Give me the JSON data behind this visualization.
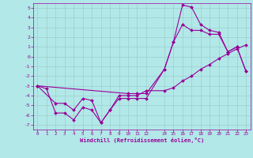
{
  "xlabel": "Windchill (Refroidissement éolien,°C)",
  "background_color": "#b2e8e8",
  "grid_color": "#9dcfcf",
  "line_color": "#990099",
  "xlim": [
    -0.5,
    23.5
  ],
  "ylim": [
    -7.5,
    5.5
  ],
  "xticks": [
    0,
    1,
    2,
    3,
    4,
    5,
    6,
    7,
    8,
    9,
    10,
    11,
    12,
    14,
    15,
    16,
    17,
    18,
    19,
    20,
    21,
    22,
    23
  ],
  "yticks": [
    -7,
    -6,
    -5,
    -4,
    -3,
    -2,
    -1,
    0,
    1,
    2,
    3,
    4,
    5
  ],
  "line1_x": [
    0,
    1,
    2,
    3,
    4,
    5,
    6,
    7,
    8,
    9,
    10,
    11,
    12,
    14,
    15,
    16,
    17,
    18,
    19,
    20,
    21,
    22,
    23
  ],
  "line1_y": [
    -3,
    -3.3,
    -5.8,
    -5.8,
    -6.5,
    -5.2,
    -5.5,
    -6.8,
    -5.5,
    -4.3,
    -4.3,
    -4.3,
    -4.3,
    -1.3,
    1.5,
    5.3,
    5.1,
    3.3,
    2.7,
    2.5,
    0.5,
    1.0,
    -1.5
  ],
  "line2_x": [
    0,
    2,
    3,
    4,
    5,
    6,
    7,
    8,
    9,
    10,
    11,
    12,
    14,
    15,
    16,
    17,
    18,
    19,
    20,
    21,
    22,
    23
  ],
  "line2_y": [
    -3,
    -4.8,
    -4.8,
    -5.5,
    -4.3,
    -4.5,
    -6.8,
    -5.5,
    -4.0,
    -4.0,
    -4.0,
    -3.5,
    -3.5,
    -3.2,
    -2.5,
    -2.0,
    -1.3,
    -0.8,
    -0.2,
    0.3,
    0.8,
    1.2
  ],
  "line3_x": [
    0,
    10,
    11,
    12,
    14,
    15,
    16,
    17,
    18,
    19,
    20,
    21,
    22,
    23
  ],
  "line3_y": [
    -3,
    -3.8,
    -3.8,
    -3.8,
    -1.3,
    1.5,
    3.3,
    2.7,
    2.7,
    2.3,
    2.3,
    0.5,
    1.0,
    -1.5
  ]
}
